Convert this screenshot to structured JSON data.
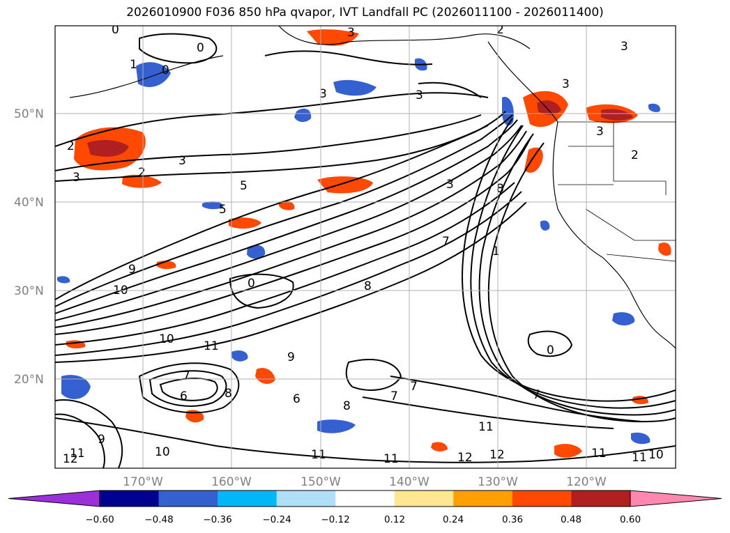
{
  "title": "2026010900 F036 850 hPa qvapor, IVT Landfall PC (2026011100 - 2026011400)",
  "lat_labels": [
    "50°N",
    "40°N",
    "30°N",
    "20°N"
  ],
  "lon_labels": [
    "170°W",
    "160°W",
    "150°W",
    "140°W",
    "130°W",
    "120°W"
  ],
  "colorbar": {
    "ticks": [
      "−0.60",
      "−0.48",
      "−0.36",
      "−0.24",
      "−0.12",
      "0.12",
      "0.24",
      "0.36",
      "0.48",
      "0.60"
    ],
    "colors": [
      "#9b30d9",
      "#000090",
      "#3560d0",
      "#00b8f8",
      "#b0e0f8",
      "#ffffff",
      "#ffe690",
      "#ffa000",
      "#ff4800",
      "#b02020",
      "#ff88b0",
      "#ff88b0"
    ],
    "under_color": "#9b30d9",
    "over_color": "#ff88b0"
  },
  "contour_labels": [
    "0",
    "0",
    "1",
    "3",
    "3",
    "3",
    "2",
    "3",
    "2",
    "3",
    "5",
    "5",
    "9",
    "10",
    "10",
    "11",
    "0",
    "8",
    "7",
    "6",
    "8",
    "9",
    "6",
    "9",
    "10",
    "11",
    "12",
    "3",
    "7",
    "1",
    "8",
    "7",
    "8",
    "7",
    "11",
    "11",
    "12",
    "11",
    "12",
    "0",
    "7",
    "2",
    "3",
    "3",
    "2",
    "3",
    "0",
    "11",
    "11",
    "10"
  ]
}
